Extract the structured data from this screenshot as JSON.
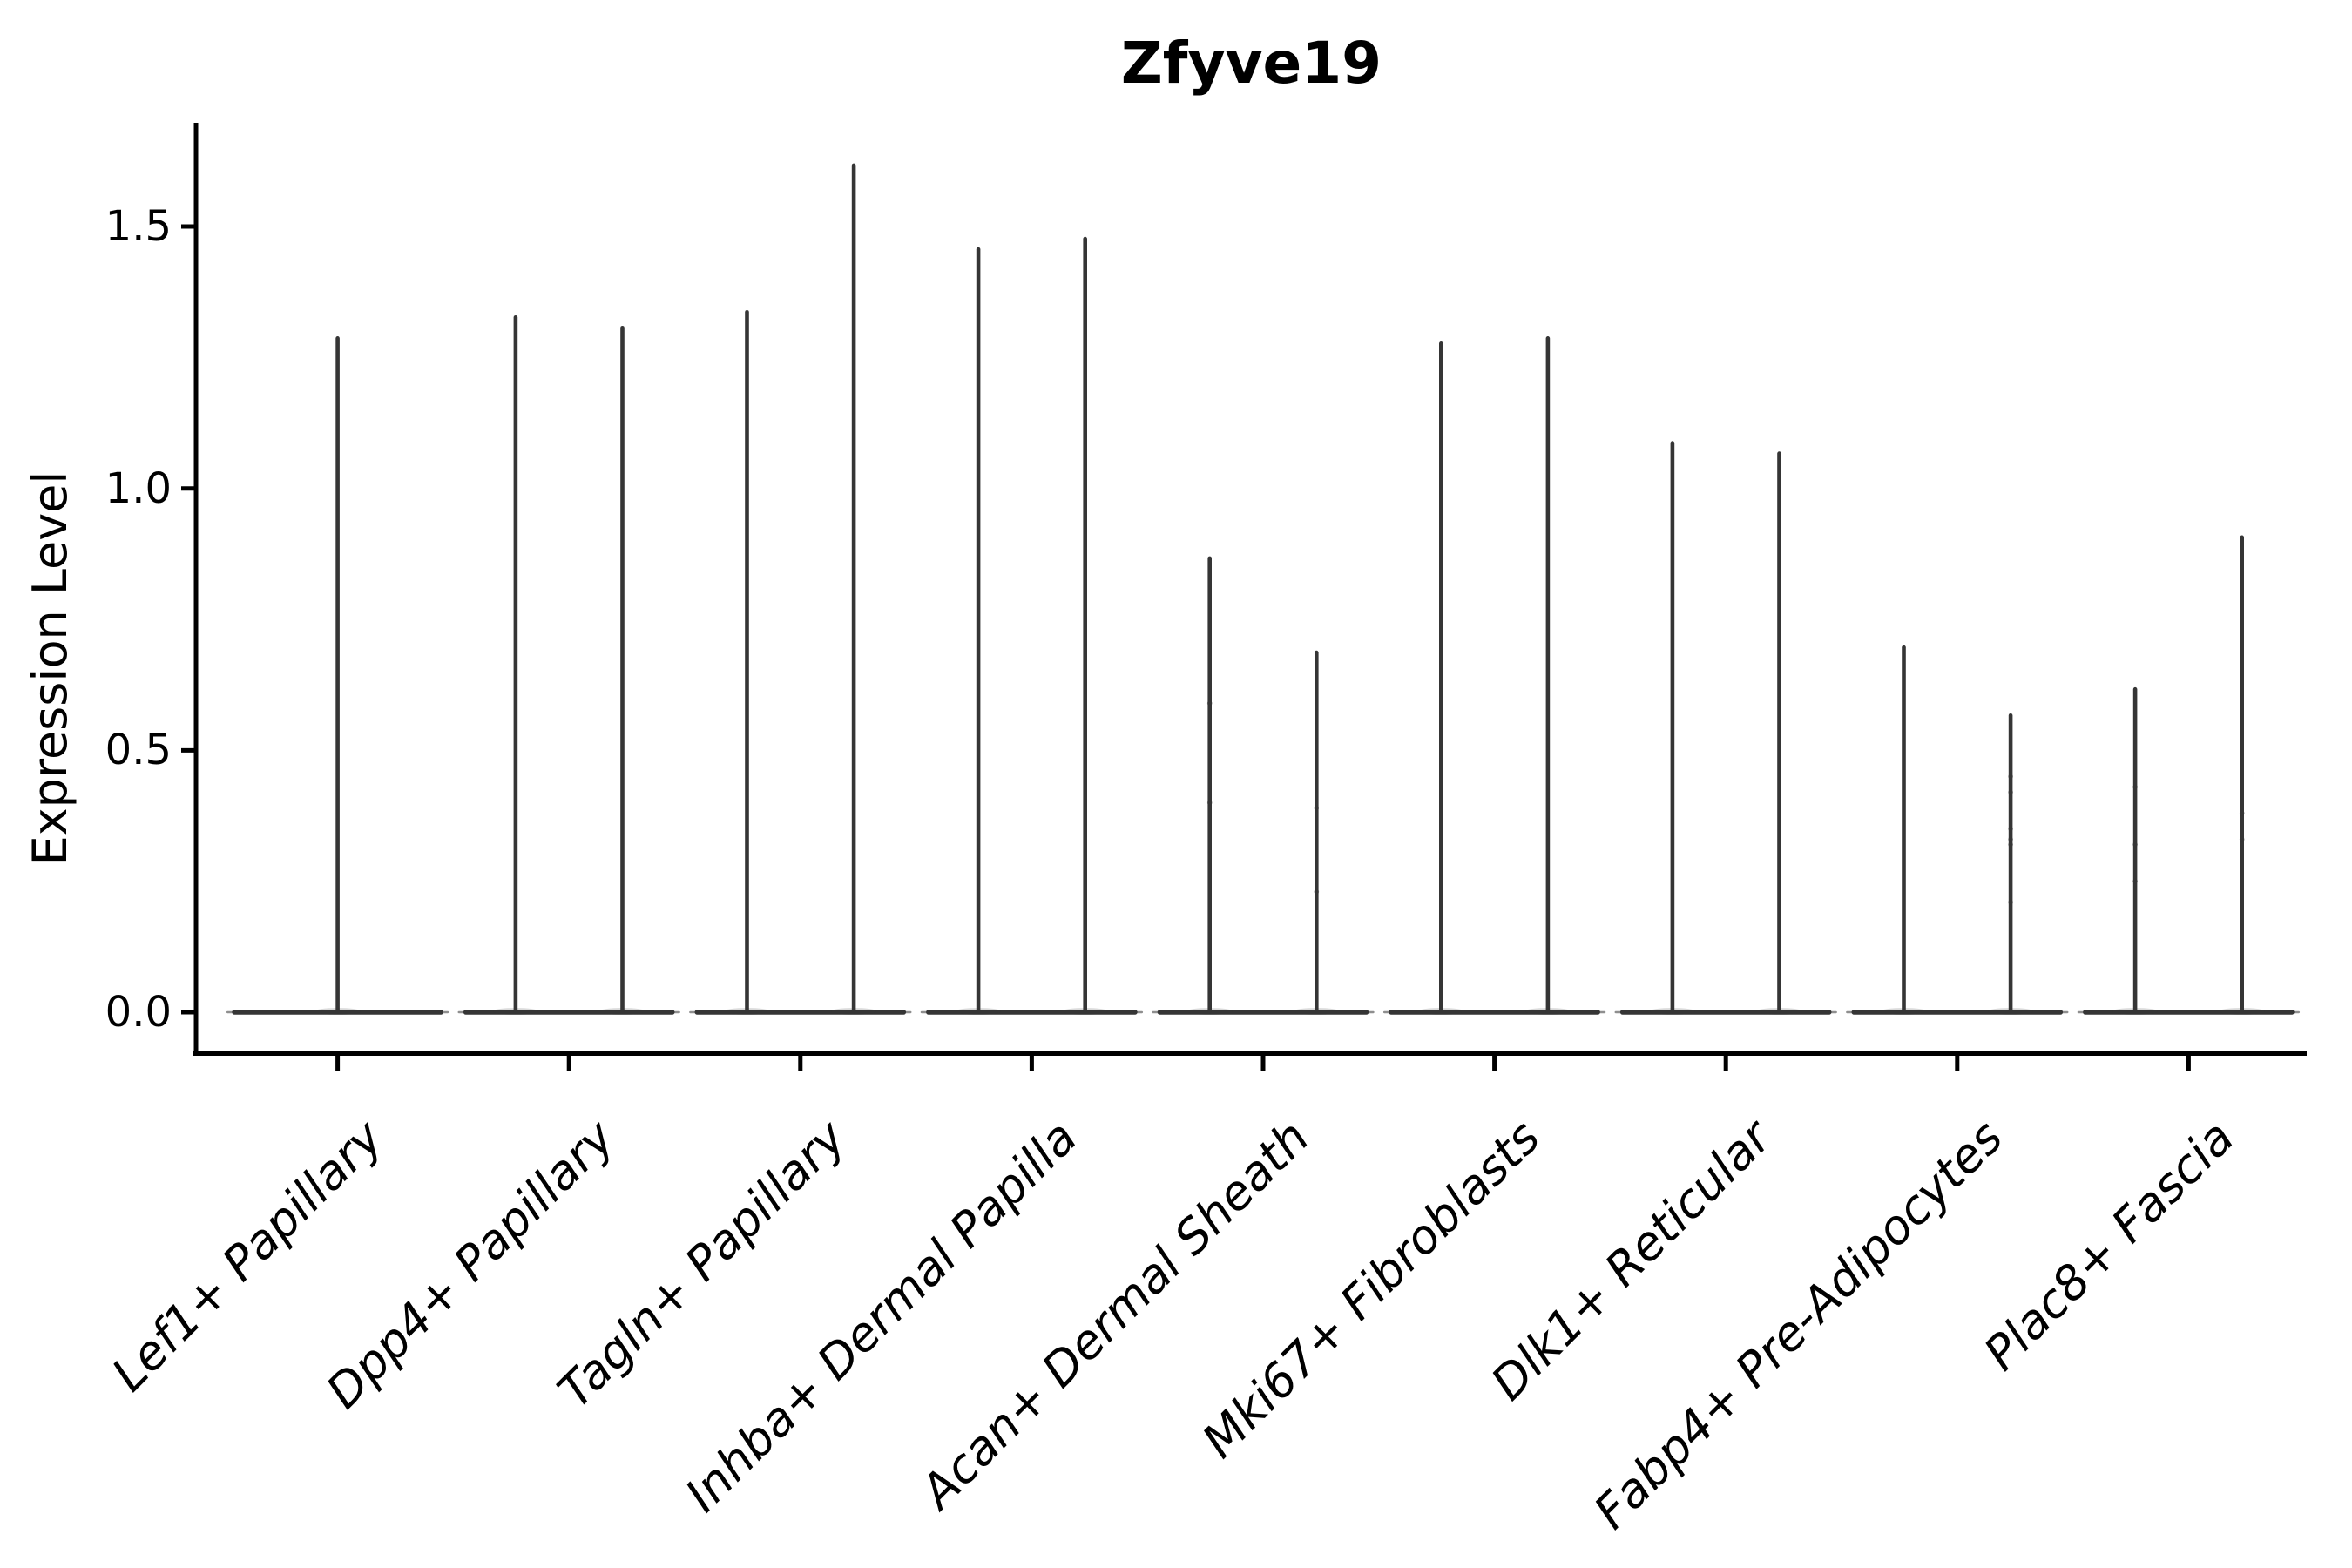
{
  "title": "Zfyve19",
  "ylabel": "Expression Level",
  "colors": {
    "violin": "#353535",
    "axis": "#000000",
    "text": "#000000",
    "background": "#ffffff"
  },
  "chart_data": {
    "type": "violin",
    "title": "Zfyve19",
    "xlabel": "",
    "ylabel": "Expression Level",
    "ylim": [
      -0.08,
      1.7
    ],
    "yticks": [
      {
        "value": 0.0,
        "label": "0.0"
      },
      {
        "value": 0.5,
        "label": "0.5"
      },
      {
        "value": 1.0,
        "label": "1.0"
      },
      {
        "value": 1.5,
        "label": "1.5"
      }
    ],
    "grid": false,
    "legend_position": "none",
    "x_tick_rotation_degrees": 45,
    "categories": [
      "Lef1+ Papillary",
      "Dpp4+ Papillary",
      "Tagln+ Papillary",
      "Inhba+ Dermal Papilla",
      "Acan+ Dermal Sheath",
      "Mki67+ Fibroblasts",
      "Dlk1+ Reticular",
      "Fabp4+ Pre-Adipocytes",
      "Plac8+ Fascia"
    ],
    "description": "Thin spike violins; expression is near zero for most cells (flat base at 0) with narrow spikes up to the max expression value per violin.",
    "violins": [
      {
        "category": "Lef1+ Papillary",
        "groups": [
          {
            "position": "center",
            "max": 1.29,
            "points": []
          }
        ]
      },
      {
        "category": "Dpp4+ Papillary",
        "groups": [
          {
            "position": "left",
            "max": 1.33,
            "points": []
          },
          {
            "position": "right",
            "max": 1.31,
            "points": []
          }
        ]
      },
      {
        "category": "Tagln+ Papillary",
        "groups": [
          {
            "position": "left",
            "max": 1.34,
            "points": []
          },
          {
            "position": "right",
            "max": 1.62,
            "points": []
          }
        ]
      },
      {
        "category": "Inhba+ Dermal Papilla",
        "groups": [
          {
            "position": "left",
            "max": 1.46,
            "points": []
          },
          {
            "position": "right",
            "max": 1.48,
            "points": []
          }
        ]
      },
      {
        "category": "Acan+ Dermal Sheath",
        "groups": [
          {
            "position": "left",
            "max": 0.87,
            "points": [
              0.59,
              0.4
            ]
          },
          {
            "position": "right",
            "max": 0.69,
            "points": [
              0.39,
              0.23
            ]
          }
        ]
      },
      {
        "category": "Mki67+ Fibroblasts",
        "groups": [
          {
            "position": "left",
            "max": 1.28,
            "points": []
          },
          {
            "position": "right",
            "max": 1.29,
            "points": []
          }
        ]
      },
      {
        "category": "Dlk1+ Reticular",
        "groups": [
          {
            "position": "left",
            "max": 1.09,
            "points": []
          },
          {
            "position": "right",
            "max": 1.07,
            "points": []
          }
        ]
      },
      {
        "category": "Fabp4+ Pre-Adipocytes",
        "groups": [
          {
            "position": "left",
            "max": 0.7,
            "points": []
          },
          {
            "position": "right",
            "max": 0.57,
            "points": [
              0.45,
              0.42,
              0.35,
              0.33,
              0.32,
              0.21
            ]
          }
        ]
      },
      {
        "category": "Plac8+ Fascia",
        "groups": [
          {
            "position": "left",
            "max": 0.62,
            "points": [
              0.43,
              0.32,
              0.25
            ]
          },
          {
            "position": "right",
            "max": 0.91,
            "points": [
              0.38,
              0.33
            ]
          }
        ]
      }
    ]
  }
}
